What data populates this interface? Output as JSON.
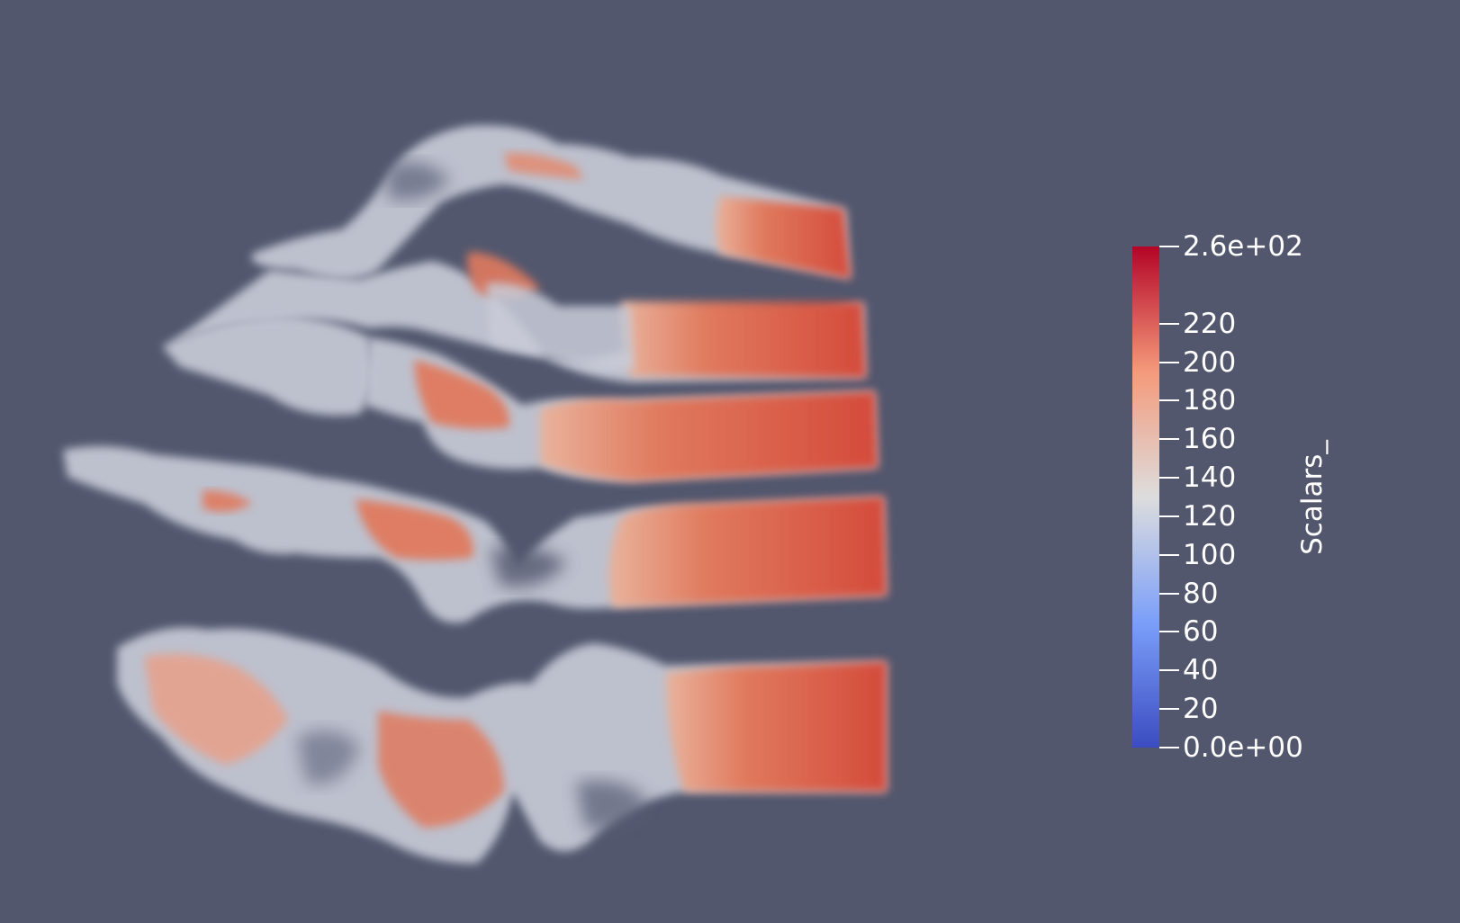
{
  "scene": {
    "background_color": "#52576e",
    "rendering": "volume-rendered foot bones",
    "colormap": "Cool to Warm"
  },
  "colorbar": {
    "title": "Scalars_",
    "range": [
      0,
      260
    ],
    "colors": {
      "low": "#3b4cc0",
      "mid": "#dddddd",
      "high": "#b40426"
    },
    "ticks": [
      {
        "value": 260,
        "label": "2.6e+02"
      },
      {
        "value": 220,
        "label": "220"
      },
      {
        "value": 200,
        "label": "200"
      },
      {
        "value": 180,
        "label": "180"
      },
      {
        "value": 160,
        "label": "160"
      },
      {
        "value": 140,
        "label": "140"
      },
      {
        "value": 120,
        "label": "120"
      },
      {
        "value": 100,
        "label": "100"
      },
      {
        "value": 80,
        "label": "80"
      },
      {
        "value": 60,
        "label": "60"
      },
      {
        "value": 40,
        "label": "40"
      },
      {
        "value": 20,
        "label": "20"
      },
      {
        "value": 0,
        "label": "0.0e+00"
      }
    ]
  }
}
